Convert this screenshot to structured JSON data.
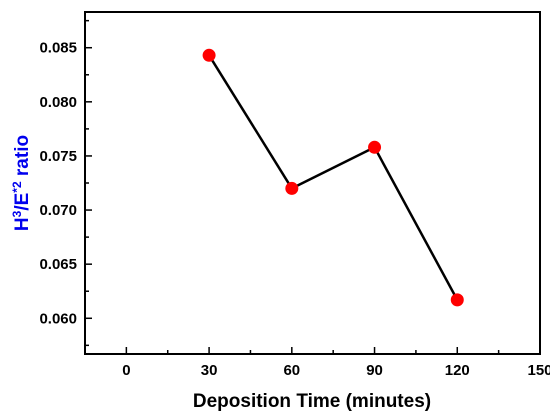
{
  "chart_data": {
    "type": "line",
    "title": "",
    "xlabel": "Deposition Time (minutes)",
    "ylabel": {
      "base1": "H",
      "sup1": "3",
      "base2": "/E",
      "sup2": "*2",
      "rest": " ratio"
    },
    "xlim": [
      -15,
      150
    ],
    "ylim": [
      0.0567,
      0.0883
    ],
    "x_ticks": [
      0,
      30,
      60,
      90,
      120,
      150
    ],
    "x_tick_labels": [
      "0",
      "30",
      "60",
      "90",
      "120",
      "150"
    ],
    "y_ticks": [
      0.06,
      0.065,
      0.07,
      0.075,
      0.08,
      0.085
    ],
    "y_tick_labels": [
      "0.060",
      "0.065",
      "0.070",
      "0.075",
      "0.080",
      "0.085"
    ],
    "grid": false,
    "series": [
      {
        "x": [
          30,
          60,
          90,
          120
        ],
        "y": [
          0.0843,
          0.072,
          0.0758,
          0.0617
        ],
        "line_color": "#000000",
        "marker_color": "#ff0000"
      }
    ],
    "colors": {
      "ylabel": "#0000ee",
      "xlabel": "#000000"
    }
  }
}
